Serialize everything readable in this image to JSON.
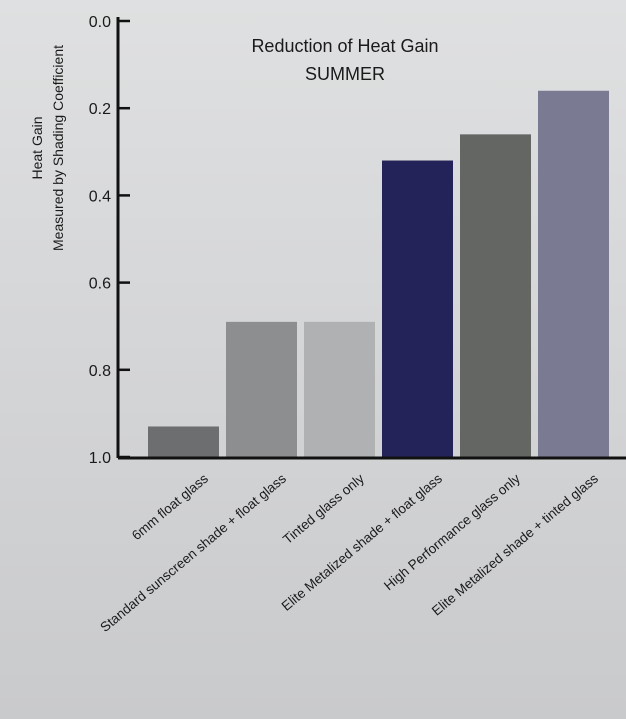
{
  "chart_data": {
    "type": "bar",
    "title": "Reduction of Heat Gain",
    "subtitle": "SUMMER",
    "ylabel": [
      "Heat Gain",
      "Measured by Shading Coefficient"
    ],
    "y_axis_inverted": true,
    "ylim": [
      0.0,
      1.0
    ],
    "yticks": [
      "0.0",
      "0.2",
      "0.4",
      "0.6",
      "0.8",
      "1.0"
    ],
    "categories": [
      "6mm float glass",
      "Standard sunscreen shade + float glass",
      "Tinted glass only",
      "Elite Metalized shade + float glass",
      "High Performance glass only",
      "Elite Metalized shade + tinted glass"
    ],
    "values": [
      0.93,
      0.69,
      0.69,
      0.32,
      0.26,
      0.16
    ],
    "colors": [
      "#6d6e6f",
      "#8d8e8f",
      "#b0b1b2",
      "#23235a",
      "#646664",
      "#7b7a93"
    ],
    "grid": false
  }
}
